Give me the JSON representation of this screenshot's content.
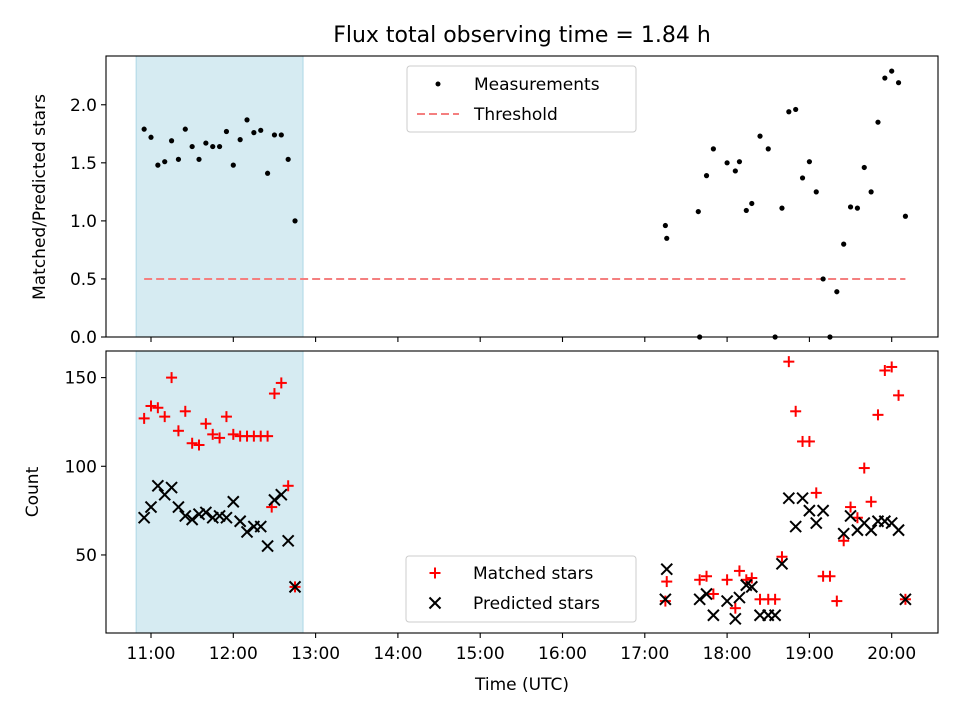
{
  "title": "Flux total observing time = 1.84 h",
  "colors": {
    "measurement": "#000000",
    "threshold": "#f47f7f",
    "matched": "#ff0000",
    "predicted": "#000000",
    "shade": "#add8e6"
  },
  "chart_data": [
    {
      "type": "scatter",
      "ylabel": "Matched/Predicted stars",
      "xlabel": "",
      "ylim": [
        0,
        2.42
      ],
      "yticks": [
        "0.0",
        "0.5",
        "1.0",
        "1.5",
        "2.0"
      ],
      "yticks_values": [
        0,
        0.5,
        1.0,
        1.5,
        2.0
      ],
      "grid": false,
      "legend_position": "top-center",
      "shaded_interval": [
        "10:55",
        "12:45"
      ],
      "series": [
        {
          "name": "Measurements",
          "marker": "dot",
          "points": [
            [
              "10:55",
              1.79
            ],
            [
              "11:00",
              1.72
            ],
            [
              "11:05",
              1.48
            ],
            [
              "11:10",
              1.51
            ],
            [
              "11:15",
              1.69
            ],
            [
              "11:20",
              1.53
            ],
            [
              "11:25",
              1.79
            ],
            [
              "11:30",
              1.64
            ],
            [
              "11:35",
              1.53
            ],
            [
              "11:40",
              1.67
            ],
            [
              "11:45",
              1.64
            ],
            [
              "11:50",
              1.64
            ],
            [
              "11:55",
              1.77
            ],
            [
              "12:00",
              1.48
            ],
            [
              "12:05",
              1.7
            ],
            [
              "12:10",
              1.87
            ],
            [
              "12:15",
              1.76
            ],
            [
              "12:20",
              1.78
            ],
            [
              "12:25",
              1.41
            ],
            [
              "12:30",
              1.74
            ],
            [
              "12:35",
              1.74
            ],
            [
              "12:40",
              1.53
            ],
            [
              "12:45",
              1.0
            ],
            [
              "17:15",
              0.96
            ],
            [
              "17:16",
              0.85
            ],
            [
              "17:39",
              1.08
            ],
            [
              "17:40",
              0.0
            ],
            [
              "17:45",
              1.39
            ],
            [
              "17:50",
              1.62
            ],
            [
              "18:00",
              1.5
            ],
            [
              "18:06",
              1.43
            ],
            [
              "18:09",
              1.51
            ],
            [
              "18:14",
              1.09
            ],
            [
              "18:18",
              1.15
            ],
            [
              "18:24",
              1.73
            ],
            [
              "18:30",
              1.62
            ],
            [
              "18:35",
              0.0
            ],
            [
              "18:40",
              1.11
            ],
            [
              "18:45",
              1.94
            ],
            [
              "18:50",
              1.96
            ],
            [
              "18:55",
              1.37
            ],
            [
              "19:00",
              1.51
            ],
            [
              "19:05",
              1.25
            ],
            [
              "19:10",
              0.5
            ],
            [
              "19:15",
              0.0
            ],
            [
              "19:20",
              0.39
            ],
            [
              "19:25",
              0.8
            ],
            [
              "19:30",
              1.12
            ],
            [
              "19:35",
              1.11
            ],
            [
              "19:40",
              1.46
            ],
            [
              "19:45",
              1.25
            ],
            [
              "19:50",
              1.85
            ],
            [
              "19:55",
              2.23
            ],
            [
              "20:00",
              2.29
            ],
            [
              "20:05",
              2.19
            ],
            [
              "20:10",
              1.04
            ]
          ]
        },
        {
          "name": "Threshold",
          "style": "dashed",
          "points": [
            [
              "10:55",
              0.5
            ],
            [
              "20:10",
              0.5
            ]
          ]
        }
      ]
    },
    {
      "type": "scatter",
      "ylabel": "Count",
      "xlabel": "Time (UTC)",
      "ylim": [
        6,
        165
      ],
      "yticks": [
        "50",
        "100",
        "150"
      ],
      "yticks_values": [
        50,
        100,
        150
      ],
      "xticks": [
        "11:00",
        "12:00",
        "13:00",
        "14:00",
        "15:00",
        "16:00",
        "17:00",
        "18:00",
        "19:00",
        "20:00"
      ],
      "grid": false,
      "legend_position": "bottom-center",
      "shaded_interval": [
        "10:55",
        "12:45"
      ],
      "series": [
        {
          "name": "Matched stars",
          "marker": "plus",
          "points": [
            [
              "10:55",
              127
            ],
            [
              "11:00",
              134
            ],
            [
              "11:05",
              133
            ],
            [
              "11:10",
              128
            ],
            [
              "11:15",
              150
            ],
            [
              "11:20",
              120
            ],
            [
              "11:25",
              131
            ],
            [
              "11:30",
              113
            ],
            [
              "11:35",
              112
            ],
            [
              "11:40",
              124
            ],
            [
              "11:45",
              118
            ],
            [
              "11:50",
              116
            ],
            [
              "11:55",
              128
            ],
            [
              "12:00",
              118
            ],
            [
              "12:05",
              117
            ],
            [
              "12:10",
              117
            ],
            [
              "12:15",
              117
            ],
            [
              "12:20",
              117
            ],
            [
              "12:25",
              117
            ],
            [
              "12:30",
              141
            ],
            [
              "12:35",
              147
            ],
            [
              "12:40",
              89
            ],
            [
              "12:45",
              32
            ],
            [
              "12:28",
              77
            ],
            [
              "17:15",
              24
            ],
            [
              "17:16",
              35
            ],
            [
              "17:40",
              36
            ],
            [
              "17:45",
              38
            ],
            [
              "17:50",
              28
            ],
            [
              "18:00",
              36
            ],
            [
              "18:06",
              20
            ],
            [
              "18:09",
              41
            ],
            [
              "18:14",
              36
            ],
            [
              "18:18",
              37
            ],
            [
              "18:24",
              25
            ],
            [
              "18:30",
              25
            ],
            [
              "18:35",
              25
            ],
            [
              "18:40",
              49
            ],
            [
              "18:45",
              159
            ],
            [
              "18:50",
              131
            ],
            [
              "18:55",
              114
            ],
            [
              "19:00",
              114
            ],
            [
              "19:05",
              85
            ],
            [
              "19:10",
              38
            ],
            [
              "19:15",
              38
            ],
            [
              "19:20",
              24
            ],
            [
              "19:25",
              58
            ],
            [
              "19:30",
              77
            ],
            [
              "19:35",
              71
            ],
            [
              "19:40",
              99
            ],
            [
              "19:45",
              80
            ],
            [
              "19:50",
              129
            ],
            [
              "19:55",
              154
            ],
            [
              "20:00",
              156
            ],
            [
              "20:05",
              140
            ],
            [
              "20:10",
              25
            ]
          ]
        },
        {
          "name": "Predicted stars",
          "marker": "x",
          "points": [
            [
              "10:55",
              71
            ],
            [
              "11:00",
              77
            ],
            [
              "11:05",
              89
            ],
            [
              "11:10",
              84
            ],
            [
              "11:15",
              88
            ],
            [
              "11:20",
              77
            ],
            [
              "11:25",
              72
            ],
            [
              "11:30",
              70
            ],
            [
              "11:35",
              73
            ],
            [
              "11:40",
              74
            ],
            [
              "11:45",
              71
            ],
            [
              "11:50",
              72
            ],
            [
              "11:55",
              71
            ],
            [
              "12:00",
              80
            ],
            [
              "12:05",
              69
            ],
            [
              "12:10",
              63
            ],
            [
              "12:15",
              66
            ],
            [
              "12:20",
              66
            ],
            [
              "12:25",
              55
            ],
            [
              "12:30",
              81
            ],
            [
              "12:35",
              84
            ],
            [
              "12:40",
              58
            ],
            [
              "12:45",
              32
            ],
            [
              "17:15",
              25
            ],
            [
              "17:16",
              42
            ],
            [
              "17:40",
              25
            ],
            [
              "17:45",
              28
            ],
            [
              "17:50",
              16
            ],
            [
              "18:00",
              24
            ],
            [
              "18:06",
              14
            ],
            [
              "18:09",
              26
            ],
            [
              "18:14",
              33
            ],
            [
              "18:18",
              32
            ],
            [
              "18:24",
              16
            ],
            [
              "18:30",
              16
            ],
            [
              "18:35",
              16
            ],
            [
              "18:40",
              45
            ],
            [
              "18:45",
              82
            ],
            [
              "18:50",
              66
            ],
            [
              "18:55",
              82
            ],
            [
              "19:00",
              75
            ],
            [
              "19:05",
              68
            ],
            [
              "19:10",
              75
            ],
            [
              "19:25",
              62
            ],
            [
              "19:30",
              72
            ],
            [
              "19:35",
              64
            ],
            [
              "19:40",
              68
            ],
            [
              "19:45",
              64
            ],
            [
              "19:50",
              69
            ],
            [
              "19:55",
              69
            ],
            [
              "20:00",
              68
            ],
            [
              "20:05",
              64
            ],
            [
              "20:10",
              25
            ]
          ]
        }
      ]
    }
  ]
}
